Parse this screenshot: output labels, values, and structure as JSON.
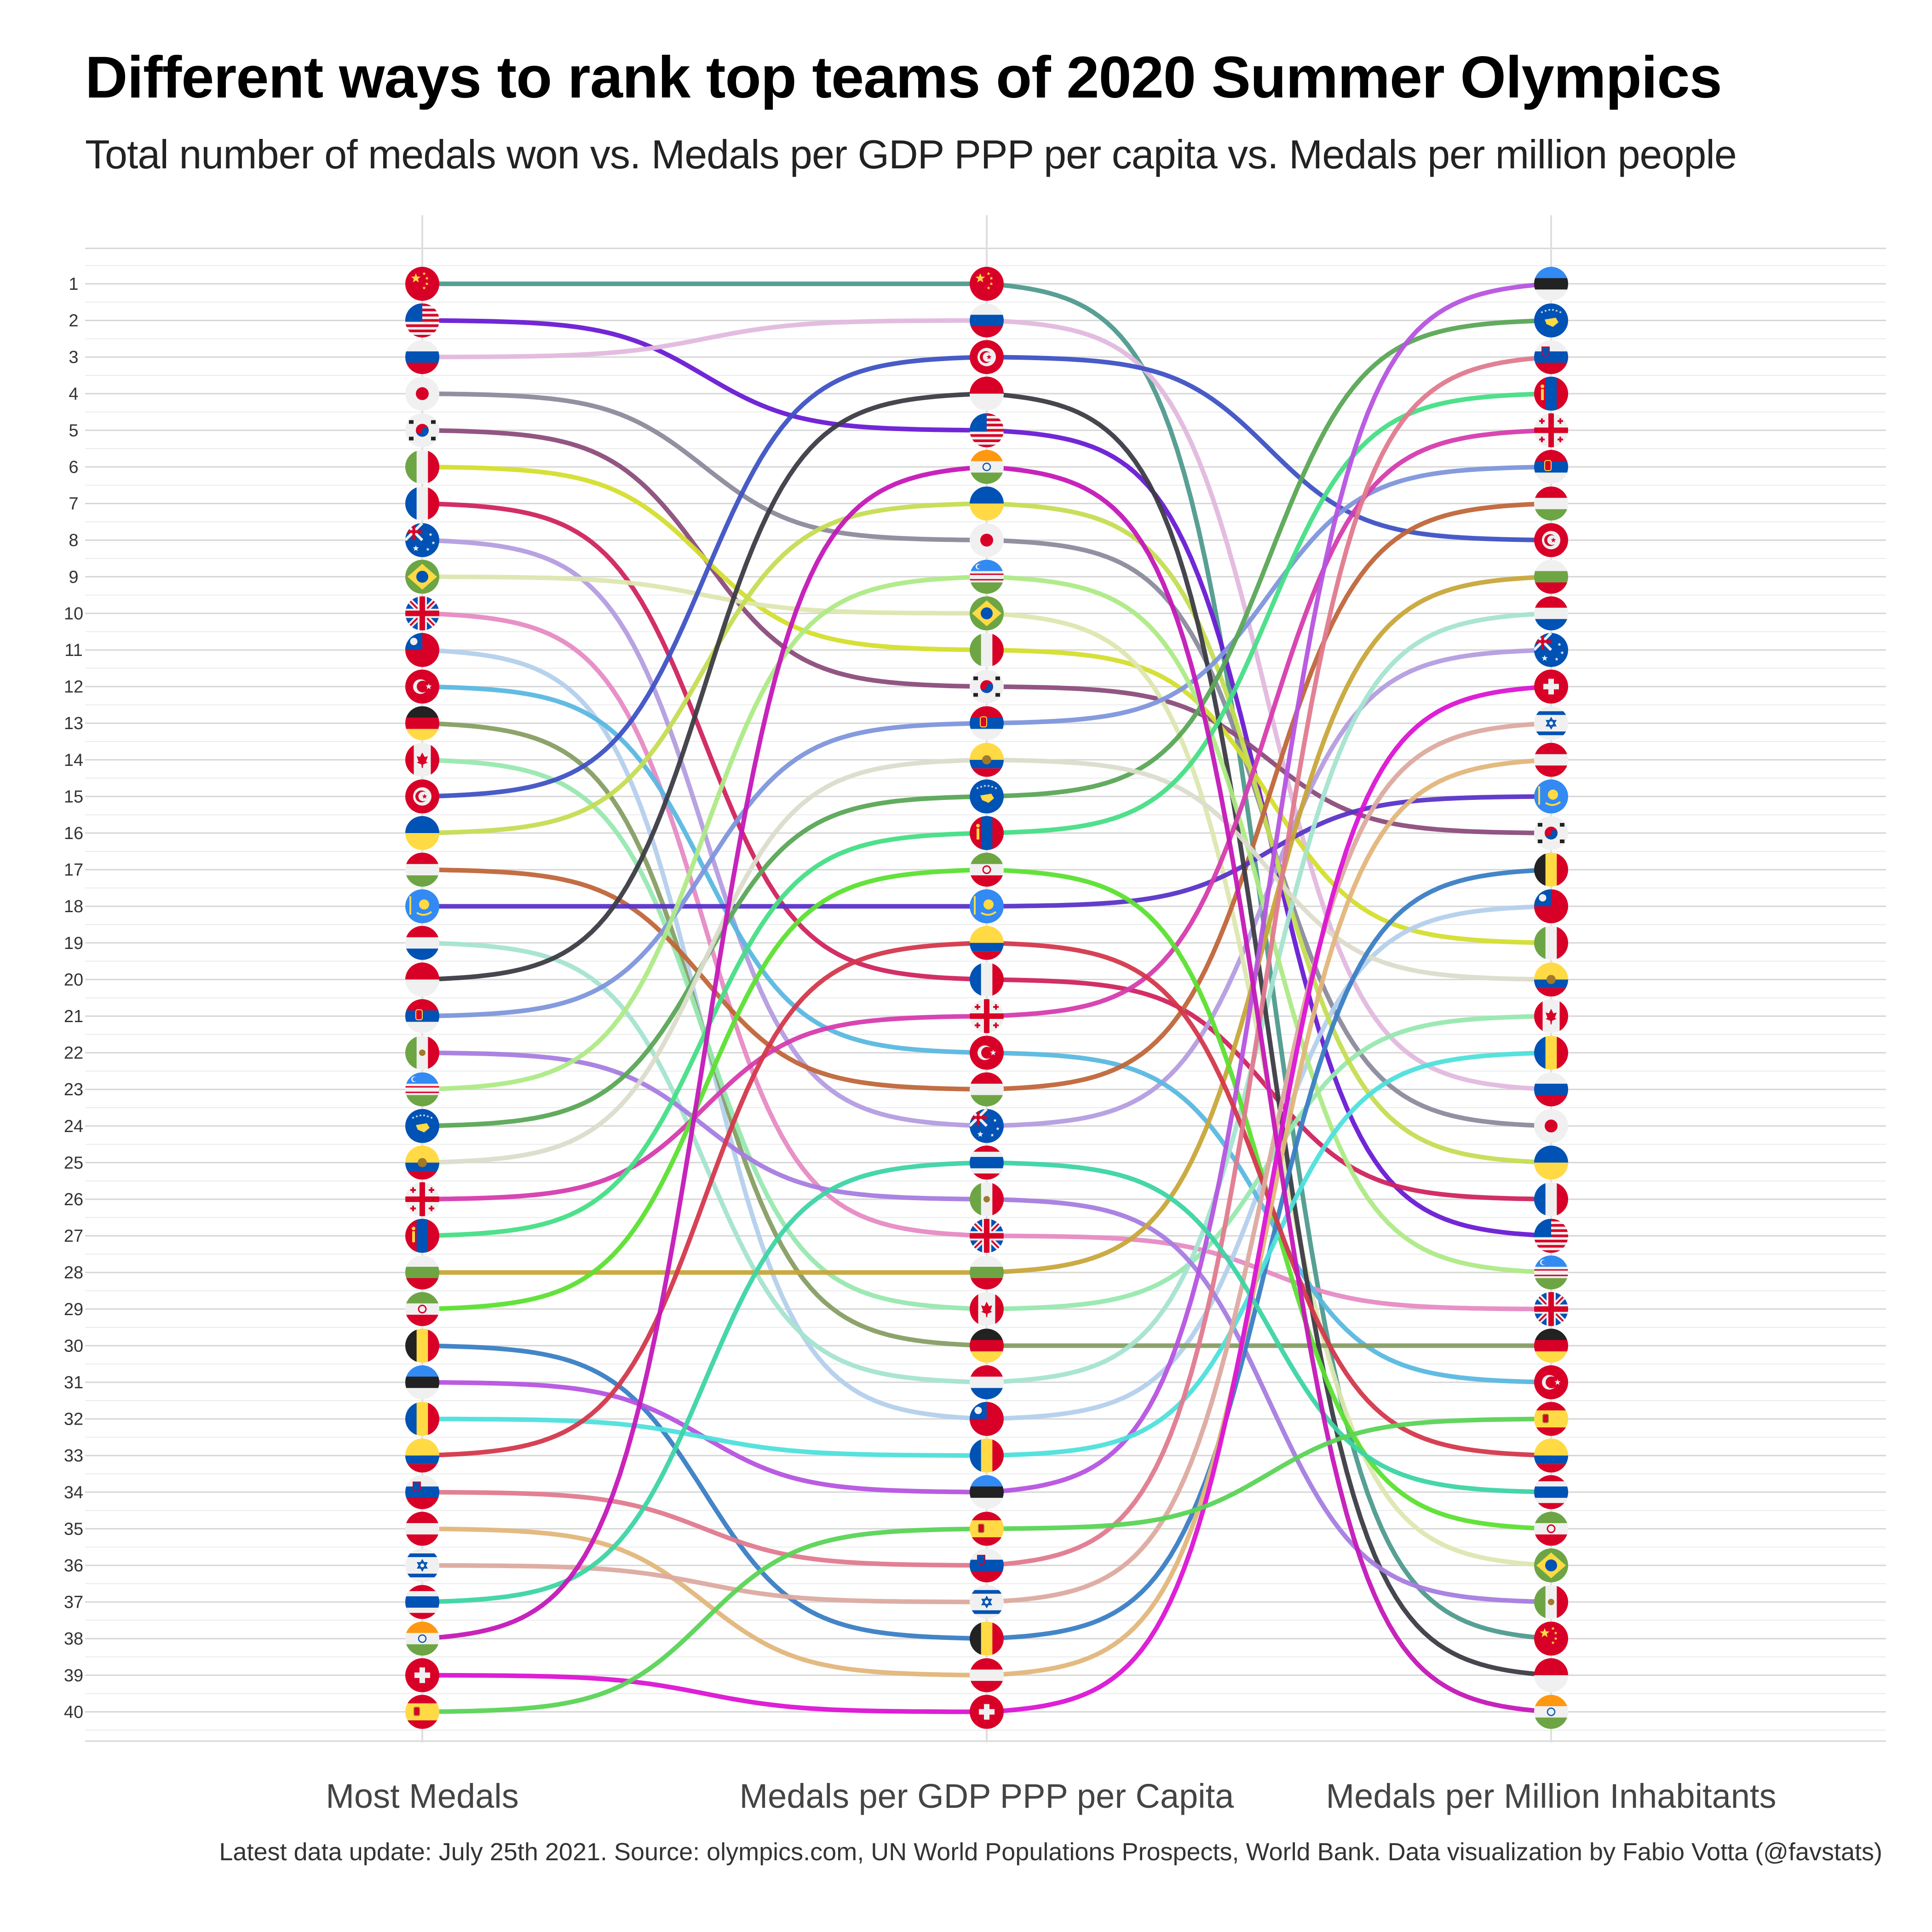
{
  "title": "Different ways to rank top teams of 2020 Summer Olympics",
  "subtitle": "Total number of medals won vs. Medals per GDP PPP per capita vs. Medals per million people",
  "caption": "Latest data update: July 25th 2021. Source: olympics.com, UN World Populations Prospects, World Bank. Data visualization by Fabio Votta (@favstats)",
  "chart_data": {
    "type": "bump",
    "categories": [
      "Most Medals",
      "Medals per GDP PPP per Capita",
      "Medals per Million Inhabitants"
    ],
    "y_ticks": [
      1,
      2,
      3,
      4,
      5,
      6,
      7,
      8,
      9,
      10,
      11,
      12,
      13,
      14,
      15,
      16,
      17,
      18,
      19,
      20,
      21,
      22,
      23,
      24,
      25,
      26,
      27,
      28,
      29,
      30,
      31,
      32,
      33,
      34,
      35,
      36,
      37,
      38,
      39,
      40
    ],
    "ylim": [
      1,
      40
    ],
    "y_reversed": true,
    "grid": true,
    "series": [
      {
        "flag": "china",
        "ranks": [
          1,
          1,
          38
        ],
        "color": "#4f9a8e"
      },
      {
        "flag": "usa",
        "ranks": [
          2,
          5,
          27
        ],
        "color": "#6a1bd4"
      },
      {
        "flag": "roc",
        "ranks": [
          3,
          2,
          23
        ],
        "color": "#e2b9de"
      },
      {
        "flag": "japan",
        "ranks": [
          4,
          8,
          24
        ],
        "color": "#8b8b9c"
      },
      {
        "flag": "south-korea",
        "ranks": [
          5,
          12,
          16
        ],
        "color": "#8c4d7c"
      },
      {
        "flag": "italy",
        "ranks": [
          6,
          11,
          19
        ],
        "color": "#d4de2e"
      },
      {
        "flag": "france",
        "ranks": [
          7,
          20,
          26
        ],
        "color": "#d0245f"
      },
      {
        "flag": "australia",
        "ranks": [
          8,
          24,
          11
        ],
        "color": "#b49de0"
      },
      {
        "flag": "brazil",
        "ranks": [
          9,
          10,
          36
        ],
        "color": "#dde7b0"
      },
      {
        "flag": "great-britain",
        "ranks": [
          10,
          27,
          29
        ],
        "color": "#e68bc4"
      },
      {
        "flag": "chinese-taipei",
        "ranks": [
          11,
          32,
          18
        ],
        "color": "#b4d0ec"
      },
      {
        "flag": "turkey",
        "ranks": [
          12,
          22,
          31
        ],
        "color": "#5ab8e0"
      },
      {
        "flag": "germany",
        "ranks": [
          13,
          30,
          30
        ],
        "color": "#879e64"
      },
      {
        "flag": "canada",
        "ranks": [
          14,
          29,
          21
        ],
        "color": "#98e8b0"
      },
      {
        "flag": "tunisia",
        "ranks": [
          15,
          3,
          8
        ],
        "color": "#3e52c4"
      },
      {
        "flag": "ukraine",
        "ranks": [
          16,
          7,
          25
        ],
        "color": "#c4dd52"
      },
      {
        "flag": "hungary",
        "ranks": [
          17,
          23,
          7
        ],
        "color": "#c0663a"
      },
      {
        "flag": "kazakhstan",
        "ranks": [
          18,
          18,
          15
        ],
        "color": "#5a34c8"
      },
      {
        "flag": "netherlands",
        "ranks": [
          19,
          31,
          10
        ],
        "color": "#a4e4d0"
      },
      {
        "flag": "indonesia",
        "ranks": [
          20,
          4,
          39
        ],
        "color": "#3c3c44"
      },
      {
        "flag": "serbia",
        "ranks": [
          21,
          13,
          6
        ],
        "color": "#7e96dc"
      },
      {
        "flag": "mexico",
        "ranks": [
          22,
          26,
          37
        ],
        "color": "#a67de0"
      },
      {
        "flag": "uzbekistan",
        "ranks": [
          23,
          9,
          28
        ],
        "color": "#aeea86"
      },
      {
        "flag": "kosovo",
        "ranks": [
          24,
          15,
          2
        ],
        "color": "#5aa656"
      },
      {
        "flag": "ecuador",
        "ranks": [
          25,
          14,
          20
        ],
        "color": "#dcdccc"
      },
      {
        "flag": "georgia",
        "ranks": [
          26,
          21,
          5
        ],
        "color": "#d63cae"
      },
      {
        "flag": "mongolia",
        "ranks": [
          27,
          16,
          4
        ],
        "color": "#46de86"
      },
      {
        "flag": "bulgaria",
        "ranks": [
          28,
          28,
          9
        ],
        "color": "#c8a63a"
      },
      {
        "flag": "iran",
        "ranks": [
          29,
          17,
          35
        ],
        "color": "#5ce032"
      },
      {
        "flag": "belgium",
        "ranks": [
          30,
          38,
          17
        ],
        "color": "#3a7ec4"
      },
      {
        "flag": "estonia",
        "ranks": [
          31,
          34,
          1
        ],
        "color": "#b654e0"
      },
      {
        "flag": "romania",
        "ranks": [
          32,
          33,
          22
        ],
        "color": "#4ee0dc"
      },
      {
        "flag": "colombia",
        "ranks": [
          33,
          19,
          33
        ],
        "color": "#d4384c"
      },
      {
        "flag": "slovenia",
        "ranks": [
          34,
          36,
          3
        ],
        "color": "#e07a8e"
      },
      {
        "flag": "austria",
        "ranks": [
          35,
          39,
          14
        ],
        "color": "#e2b67a"
      },
      {
        "flag": "israel",
        "ranks": [
          36,
          37,
          13
        ],
        "color": "#dcaaa0"
      },
      {
        "flag": "thailand",
        "ranks": [
          37,
          25,
          34
        ],
        "color": "#3cd4a4"
      },
      {
        "flag": "india",
        "ranks": [
          38,
          6,
          40
        ],
        "color": "#c418b8"
      },
      {
        "flag": "switzerland",
        "ranks": [
          39,
          40,
          12
        ],
        "color": "#dc14d4"
      },
      {
        "flag": "spain",
        "ranks": [
          40,
          35,
          32
        ],
        "color": "#5ad456"
      }
    ]
  }
}
